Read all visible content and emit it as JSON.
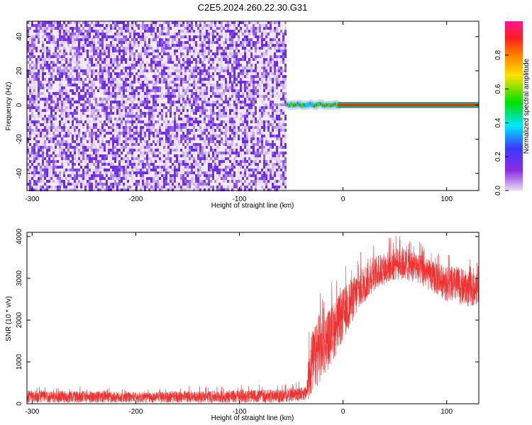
{
  "figure": {
    "title": "C2E5.2024.260.22.30.G31"
  },
  "chart_data": [
    {
      "type": "heatmap",
      "xlabel": "Height of straight line (km)",
      "ylabel": "Frequency (Hz)",
      "xlim": [
        -305,
        131
      ],
      "ylim": [
        -50,
        49
      ],
      "xticks": [
        -300,
        -200,
        -100,
        0,
        100
      ],
      "yticks": [
        -40,
        -20,
        0,
        20,
        40
      ],
      "colorbar": {
        "label": "Normalized spectral amplitude",
        "range": [
          0,
          1
        ],
        "ticks": [
          0.0,
          0.2,
          0.4,
          0.6,
          0.8
        ],
        "colormap": [
          "#e8dcf7",
          "#8a2be2",
          "#3a3aff",
          "#00e5ff",
          "#00e000",
          "#ffe000",
          "#ff8000",
          "#ff1e1e",
          "#ff1493"
        ]
      },
      "regions": [
        {
          "x_range": [
            -305,
            -55
          ],
          "description": "broadband noise, amplitude ~0.05-0.2 across all frequencies"
        },
        {
          "x_range": [
            -55,
            -5
          ],
          "frequency_hz": [
            -2,
            2
          ],
          "description": "transition with fragmented narrow carrier line"
        },
        {
          "x_range": [
            -5,
            131
          ],
          "frequency_hz": 0,
          "peak_amplitude": 0.95,
          "description": "steady carrier line at 0 Hz"
        }
      ],
      "grid": false
    },
    {
      "type": "line",
      "xlabel": "Height of straight line (km)",
      "ylabel": "SNR (10 * v/v)",
      "xlim": [
        -305,
        131
      ],
      "ylim": [
        0,
        4100
      ],
      "xticks": [
        -300,
        -200,
        -100,
        0,
        100
      ],
      "yticks": [
        0,
        1000,
        2000,
        3000,
        4000
      ],
      "series_color": "#ee3333",
      "envelope": {
        "x": [
          -305,
          -250,
          -200,
          -150,
          -100,
          -60,
          -35,
          -32,
          -30,
          -25,
          -20,
          -10,
          0,
          10,
          20,
          30,
          40,
          50,
          60,
          70,
          80,
          90,
          100,
          110,
          120,
          131
        ],
        "low": [
          20,
          20,
          20,
          20,
          20,
          20,
          80,
          100,
          200,
          400,
          600,
          1000,
          1500,
          2000,
          2400,
          2700,
          2850,
          2950,
          2950,
          2900,
          2750,
          2600,
          2450,
          2400,
          2300,
          2400
        ],
        "high": [
          450,
          430,
          380,
          420,
          460,
          480,
          550,
          2300,
          2400,
          2600,
          2700,
          3000,
          3300,
          3500,
          3700,
          3850,
          3950,
          4050,
          4050,
          3950,
          3800,
          3700,
          3650,
          3650,
          3550,
          3400
        ]
      },
      "grid": false
    }
  ]
}
